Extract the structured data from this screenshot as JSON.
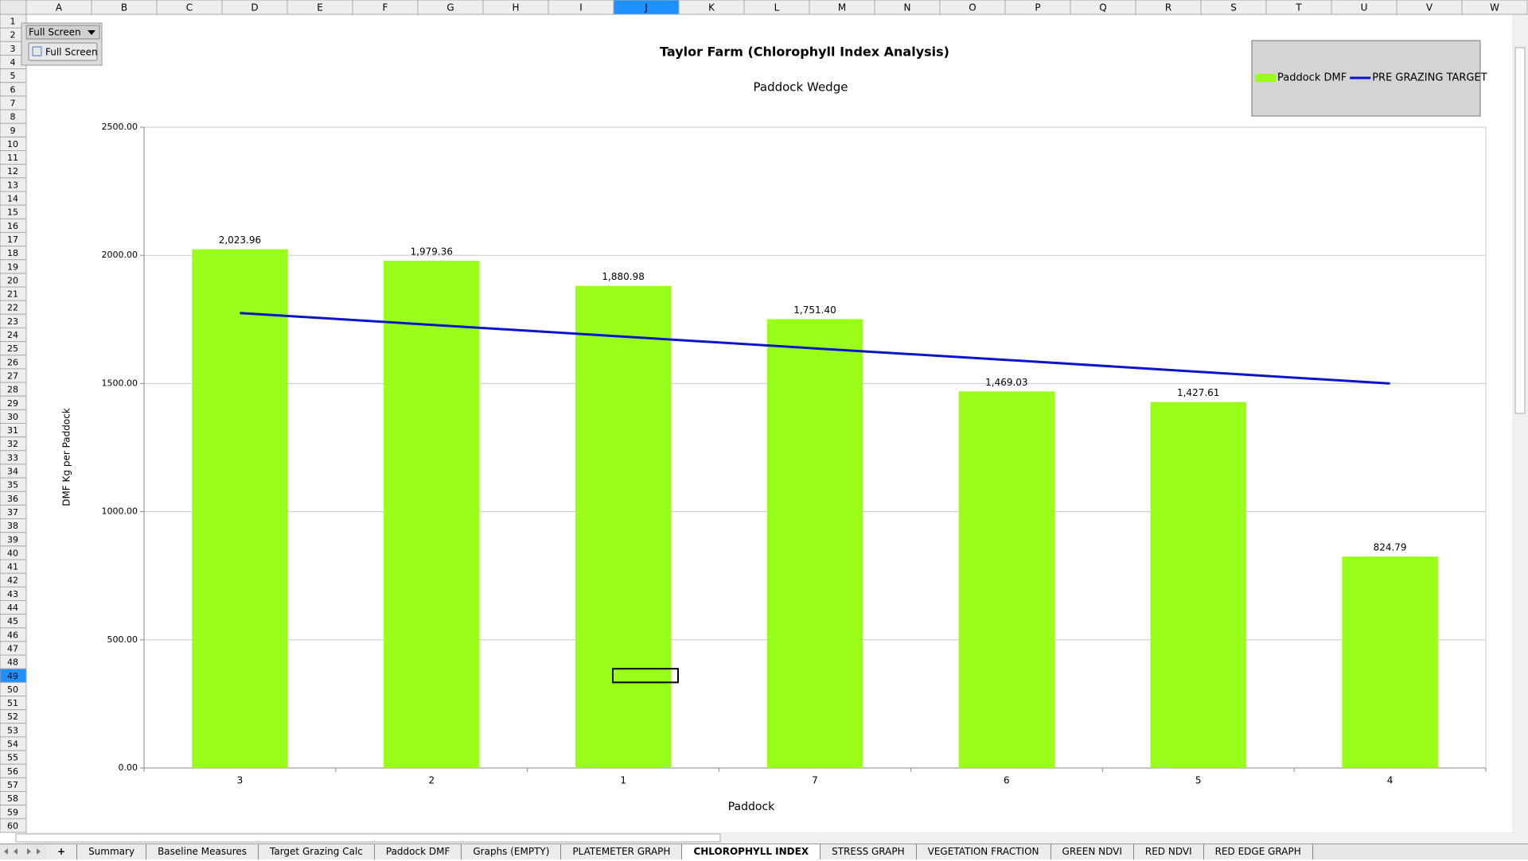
{
  "toolbar": {
    "dropdown": "Full Screen",
    "button": "Full Screen"
  },
  "columns": [
    "A",
    "B",
    "C",
    "D",
    "E",
    "F",
    "G",
    "H",
    "I",
    "J",
    "K",
    "L",
    "M",
    "N",
    "O",
    "P",
    "Q",
    "R",
    "S",
    "T",
    "U",
    "V",
    "W"
  ],
  "rows": [
    1,
    2,
    3,
    4,
    5,
    6,
    7,
    8,
    9,
    10,
    11,
    12,
    13,
    14,
    15,
    16,
    17,
    18,
    19,
    20,
    21,
    22,
    23,
    24,
    25,
    26,
    27,
    28,
    29,
    30,
    31,
    32,
    33,
    34,
    35,
    36,
    37,
    38,
    39,
    40,
    41,
    42,
    43,
    44,
    45,
    46,
    47,
    48,
    49,
    50,
    51,
    52,
    53,
    54,
    55,
    56,
    57,
    58,
    59,
    60
  ],
  "add_tab": "+",
  "sheet_tabs": [
    "Summary",
    "Baseline Measures",
    "Target Grazing Calc",
    "Paddock DMF",
    "Graphs (EMPTY)",
    "PLATEMETER GRAPH",
    "CHLOROPHYLL INDEX",
    "STRESS GRAPH",
    "VEGETATION FRACTION",
    "GREEN NDVI",
    "RED NDVI",
    "RED EDGE GRAPH"
  ],
  "chart_data": {
    "type": "bar",
    "title": "Taylor Farm (Chlorophyll Index Analysis)",
    "subtitle": "Paddock Wedge",
    "x_label": "Paddock",
    "y_label": "DMF Kg per Paddock",
    "categories": [
      "3",
      "2",
      "1",
      "7",
      "6",
      "5",
      "4"
    ],
    "series": [
      {
        "name": "Paddock DMF",
        "type": "bar",
        "color": "#99ff1a",
        "values": [
          2023.96,
          1979.36,
          1880.98,
          1751.4,
          1469.03,
          1427.61,
          824.79
        ],
        "value_labels": [
          "2,023.96",
          "1,979.36",
          "1,880.98",
          "1,751.40",
          "1,469.03",
          "1,427.61",
          "824.79"
        ]
      },
      {
        "name": "PRE GRAZING TARGET",
        "type": "line",
        "color": "#0a14c8",
        "values": [
          1775,
          1729,
          1683,
          1637,
          1592,
          1546,
          1500
        ]
      }
    ],
    "ylim": [
      0,
      2500
    ],
    "yticks": [
      {
        "value": 0,
        "label": "0.00"
      },
      {
        "value": 500,
        "label": "500.00"
      },
      {
        "value": 1000,
        "label": "1000.00"
      },
      {
        "value": 1500,
        "label": "1500.00"
      },
      {
        "value": 2000,
        "label": "2000.00"
      },
      {
        "value": 2500,
        "label": "2500.00"
      }
    ],
    "grid": true,
    "legend": "top-right"
  }
}
